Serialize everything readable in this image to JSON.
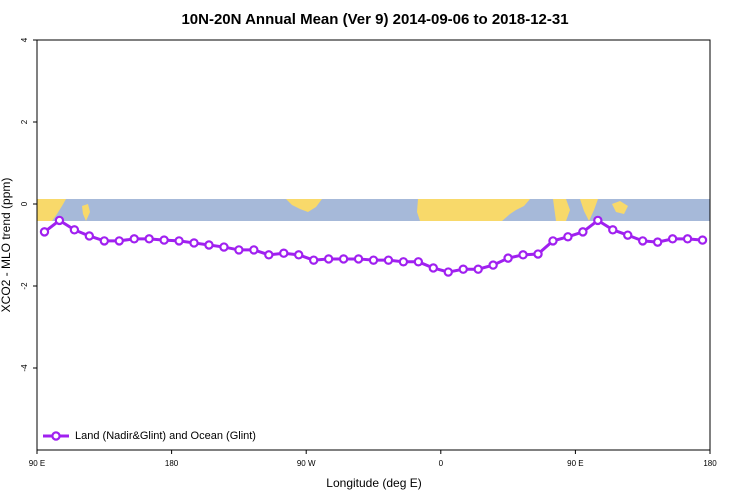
{
  "chart_data": {
    "type": "line",
    "title": "10N-20N Annual Mean (Ver 9)   2014-09-06 to 2018-12-31",
    "xlabel": "Longitude (deg E)",
    "ylabel": "XCO2 - MLO trend (ppm)",
    "x": [
      95,
      105,
      115,
      125,
      135,
      145,
      155,
      165,
      175,
      185,
      195,
      205,
      215,
      225,
      235,
      245,
      255,
      265,
      275,
      285,
      295,
      305,
      315,
      325,
      335,
      345,
      355,
      365,
      375,
      385,
      395,
      405,
      415,
      425,
      435,
      445,
      455,
      465,
      475,
      485,
      495,
      505,
      515,
      525,
      535
    ],
    "series": [
      {
        "name": "Land (Nadir&Glint) and Ocean (Glint)",
        "color": "#a020f0",
        "values": [
          -0.68,
          -0.4,
          -0.63,
          -0.78,
          -0.9,
          -0.9,
          -0.85,
          -0.85,
          -0.88,
          -0.9,
          -0.95,
          -1.0,
          -1.05,
          -1.12,
          -1.12,
          -1.24,
          -1.2,
          -1.24,
          -1.37,
          -1.34,
          -1.34,
          -1.34,
          -1.37,
          -1.37,
          -1.41,
          -1.41,
          -1.56,
          -1.66,
          -1.59,
          -1.59,
          -1.49,
          -1.32,
          -1.24,
          -1.22,
          -0.9,
          -0.8,
          -0.68,
          -0.4,
          -0.63,
          -0.76,
          -0.9,
          -0.93,
          -0.85,
          -0.85,
          -0.88
        ]
      }
    ],
    "xlim": [
      90,
      540
    ],
    "ylim": [
      -6,
      4
    ],
    "xticks": [
      {
        "value": 90,
        "label": "90 E"
      },
      180,
      {
        "value": 270,
        "label": "90 W"
      },
      {
        "value": 360,
        "label": "0"
      },
      {
        "value": 450,
        "label": "90 E"
      },
      {
        "value": 540,
        "label": "180"
      }
    ],
    "yticks": [
      -4,
      -2,
      0,
      2,
      4
    ],
    "legend": "bottom left"
  }
}
